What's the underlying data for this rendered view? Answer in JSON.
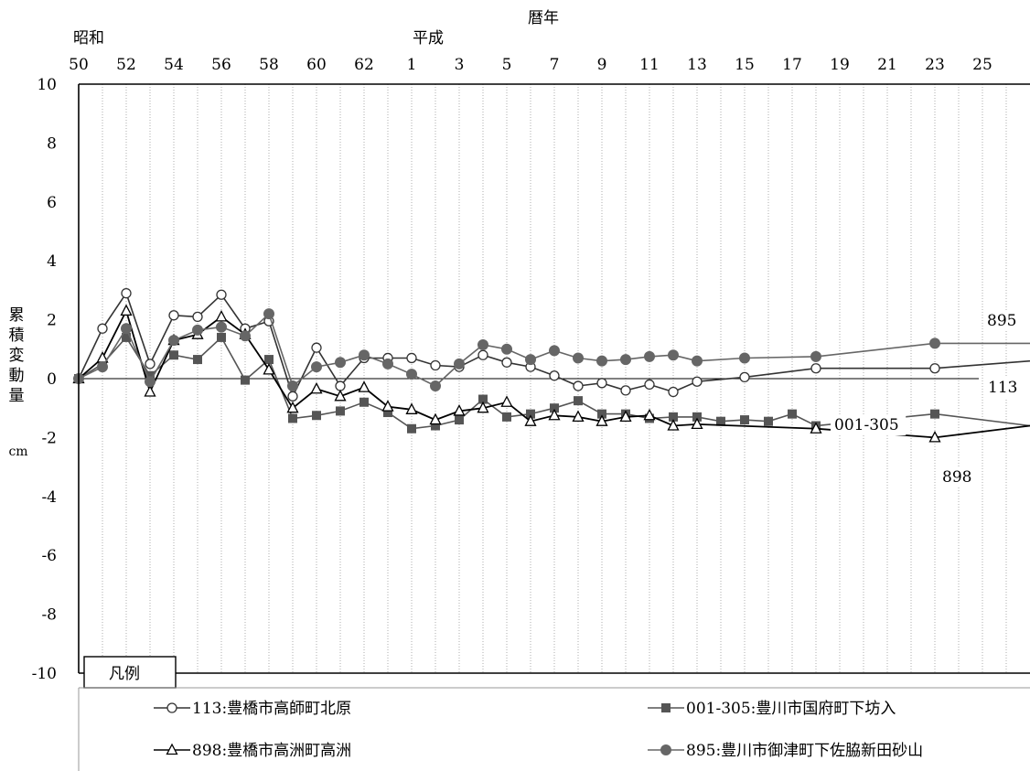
{
  "chart_data": {
    "type": "line",
    "title": "暦年",
    "era_labels": [
      "昭和",
      "平成"
    ],
    "x_tick_labels": [
      "50",
      "52",
      "54",
      "56",
      "58",
      "60",
      "62",
      "1",
      "3",
      "5",
      "7",
      "9",
      "11",
      "13",
      "15",
      "17",
      "19",
      "21",
      "23",
      "25"
    ],
    "ylabel_chars": [
      "累",
      "積",
      "変",
      "動",
      "量"
    ],
    "yunit": "cm",
    "ylim": [
      -10,
      10
    ],
    "y_ticks": [
      10,
      8,
      6,
      4,
      2,
      0,
      -2,
      -4,
      -6,
      -8,
      -10
    ],
    "x_years": [
      "S50",
      "S51",
      "S52",
      "S53",
      "S54",
      "S55",
      "S56",
      "S57",
      "S58",
      "S59",
      "S60",
      "S61",
      "S62",
      "S63",
      "H1",
      "H2",
      "H3",
      "H4",
      "H5",
      "H6",
      "H7",
      "H8",
      "H9",
      "H10",
      "H11",
      "H12",
      "H13",
      "H14",
      "H15",
      "H16",
      "H17",
      "H18",
      "H19",
      "H20",
      "H21",
      "H22",
      "H23",
      "H24",
      "H25",
      "H26"
    ],
    "series": [
      {
        "name": "113:豊橋市高師町北原",
        "line_label": "113",
        "marker": "circle-open",
        "color": "#333333",
        "points": [
          [
            0,
            0
          ],
          [
            1,
            1.7
          ],
          [
            2,
            2.9
          ],
          [
            3,
            0.5
          ],
          [
            4,
            2.15
          ],
          [
            5,
            2.1
          ],
          [
            6,
            2.85
          ],
          [
            7,
            1.7
          ],
          [
            8,
            1.95
          ],
          [
            9,
            -0.6
          ],
          [
            10,
            1.05
          ],
          [
            11,
            -0.25
          ],
          [
            12,
            0.7
          ],
          [
            13,
            0.7
          ],
          [
            14,
            0.7
          ],
          [
            15,
            0.45
          ],
          [
            16,
            0.4
          ],
          [
            17,
            0.8
          ],
          [
            18,
            0.55
          ],
          [
            19,
            0.4
          ],
          [
            20,
            0.1
          ],
          [
            21,
            -0.25
          ],
          [
            22,
            -0.15
          ],
          [
            23,
            -0.4
          ],
          [
            24,
            -0.2
          ],
          [
            25,
            -0.45
          ],
          [
            26,
            -0.1
          ],
          [
            28,
            0.05
          ],
          [
            31,
            0.35
          ],
          [
            36,
            0.35
          ],
          [
            40,
            0.6
          ]
        ]
      },
      {
        "name": "001-305:豊川市国府町下坊入",
        "line_label": "001-305",
        "marker": "square-filled",
        "color": "#555555",
        "points": [
          [
            0,
            0
          ],
          [
            1,
            0.5
          ],
          [
            2,
            1.4
          ],
          [
            3,
            0.1
          ],
          [
            4,
            0.8
          ],
          [
            5,
            0.65
          ],
          [
            6,
            1.4
          ],
          [
            7,
            -0.05
          ],
          [
            8,
            0.65
          ],
          [
            9,
            -1.35
          ],
          [
            10,
            -1.25
          ],
          [
            11,
            -1.1
          ],
          [
            12,
            -0.8
          ],
          [
            13,
            -1.15
          ],
          [
            14,
            -1.7
          ],
          [
            15,
            -1.6
          ],
          [
            16,
            -1.4
          ],
          [
            17,
            -0.7
          ],
          [
            18,
            -1.3
          ],
          [
            19,
            -1.2
          ],
          [
            20,
            -1.0
          ],
          [
            21,
            -0.75
          ],
          [
            22,
            -1.2
          ],
          [
            23,
            -1.2
          ],
          [
            24,
            -1.35
          ],
          [
            25,
            -1.3
          ],
          [
            26,
            -1.3
          ],
          [
            27,
            -1.45
          ],
          [
            28,
            -1.4
          ],
          [
            29,
            -1.45
          ],
          [
            30,
            -1.2
          ],
          [
            31,
            -1.6
          ],
          [
            36,
            -1.2
          ],
          [
            40,
            -1.6
          ]
        ]
      },
      {
        "name": "898:豊橋市高洲町高洲",
        "line_label": "898",
        "marker": "triangle-open",
        "color": "#000000",
        "points": [
          [
            0,
            0
          ],
          [
            1,
            0.7
          ],
          [
            2,
            2.3
          ],
          [
            3,
            -0.45
          ],
          [
            4,
            1.3
          ],
          [
            5,
            1.5
          ],
          [
            6,
            2.1
          ],
          [
            7,
            1.5
          ],
          [
            8,
            0.3
          ],
          [
            9,
            -1.0
          ],
          [
            10,
            -0.35
          ],
          [
            11,
            -0.6
          ],
          [
            12,
            -0.3
          ],
          [
            13,
            -0.95
          ],
          [
            14,
            -1.05
          ],
          [
            15,
            -1.4
          ],
          [
            16,
            -1.1
          ],
          [
            17,
            -1.0
          ],
          [
            18,
            -0.8
          ],
          [
            19,
            -1.45
          ],
          [
            20,
            -1.25
          ],
          [
            21,
            -1.3
          ],
          [
            22,
            -1.45
          ],
          [
            23,
            -1.3
          ],
          [
            24,
            -1.25
          ],
          [
            25,
            -1.6
          ],
          [
            26,
            -1.55
          ],
          [
            31,
            -1.7
          ],
          [
            36,
            -2.0
          ],
          [
            40,
            -1.6
          ]
        ]
      },
      {
        "name": "895:豊川市御津町下佐脇新田砂山",
        "line_label": "895",
        "marker": "circle-filled",
        "color": "#666666",
        "points": [
          [
            0,
            0
          ],
          [
            1,
            0.4
          ],
          [
            2,
            1.7
          ],
          [
            3,
            -0.1
          ],
          [
            4,
            1.3
          ],
          [
            5,
            1.65
          ],
          [
            6,
            1.75
          ],
          [
            7,
            1.45
          ],
          [
            8,
            2.2
          ],
          [
            9,
            -0.25
          ],
          [
            10,
            0.4
          ],
          [
            11,
            0.55
          ],
          [
            12,
            0.8
          ],
          [
            13,
            0.5
          ],
          [
            14,
            0.15
          ],
          [
            15,
            -0.25
          ],
          [
            16,
            0.5
          ],
          [
            17,
            1.15
          ],
          [
            18,
            1.0
          ],
          [
            19,
            0.65
          ],
          [
            20,
            0.95
          ],
          [
            21,
            0.7
          ],
          [
            22,
            0.6
          ],
          [
            23,
            0.65
          ],
          [
            24,
            0.75
          ],
          [
            25,
            0.8
          ],
          [
            26,
            0.6
          ],
          [
            28,
            0.7
          ],
          [
            31,
            0.75
          ],
          [
            36,
            1.2
          ],
          [
            40,
            1.2
          ]
        ]
      }
    ],
    "legend": {
      "title": "凡例",
      "position": "bottom"
    }
  }
}
